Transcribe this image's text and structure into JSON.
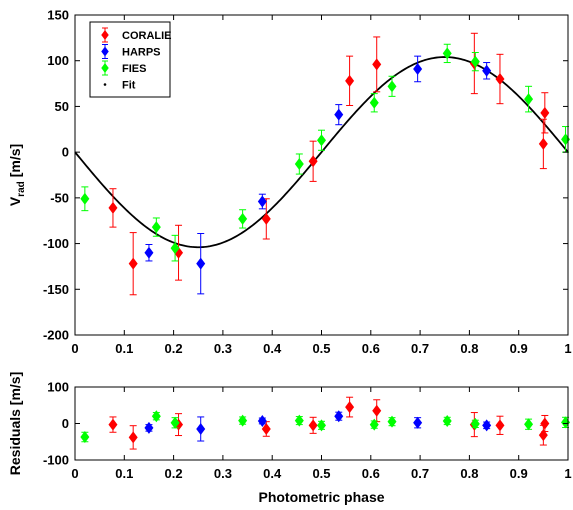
{
  "chart_data": [
    {
      "type": "scatter",
      "panel": "top",
      "title": "",
      "ylabel": "V_rad [m/s]",
      "ylabel_main": "V",
      "ylabel_sub": "rad",
      "ylabel_unit": "[m/s]",
      "xlabel": "",
      "xlim": [
        0,
        1
      ],
      "ylim": [
        -200,
        150
      ],
      "xticks": [
        0,
        0.1,
        0.2,
        0.3,
        0.4,
        0.5,
        0.6,
        0.7,
        0.8,
        0.9,
        1
      ],
      "xtick_labels": [
        "0",
        "0.1",
        "0.2",
        "0.3",
        "0.4",
        "0.5",
        "0.6",
        "0.7",
        "0.8",
        "0.9",
        "1"
      ],
      "yticks": [
        -200,
        -150,
        -100,
        -50,
        0,
        50,
        100,
        150
      ],
      "ytick_labels": [
        "-200",
        "-150",
        "-100",
        "-50",
        "0",
        "50",
        "100",
        "150"
      ],
      "grid": false,
      "legend_position": "top-left",
      "legend": [
        "CORALIE",
        "HARPS",
        "FIES",
        "Fit"
      ],
      "series": [
        {
          "name": "CORALIE",
          "color": "#ff0000",
          "marker": "diamond",
          "points": [
            {
              "x": 0.077,
              "y": -61,
              "err": 21
            },
            {
              "x": 0.118,
              "y": -122,
              "err": 34
            },
            {
              "x": 0.21,
              "y": -110,
              "err": 30
            },
            {
              "x": 0.388,
              "y": -73,
              "err": 22
            },
            {
              "x": 0.483,
              "y": -10,
              "err": 22
            },
            {
              "x": 0.557,
              "y": 78,
              "err": 27
            },
            {
              "x": 0.612,
              "y": 96,
              "err": 30
            },
            {
              "x": 0.81,
              "y": 97,
              "err": 33
            },
            {
              "x": 0.862,
              "y": 80,
              "err": 27
            },
            {
              "x": 0.95,
              "y": 9,
              "err": 27
            },
            {
              "x": 0.953,
              "y": 43,
              "err": 22
            }
          ]
        },
        {
          "name": "HARPS",
          "color": "#0000ff",
          "marker": "diamond",
          "points": [
            {
              "x": 0.15,
              "y": -110,
              "err": 9
            },
            {
              "x": 0.255,
              "y": -122,
              "err": 33
            },
            {
              "x": 0.38,
              "y": -54,
              "err": 8
            },
            {
              "x": 0.535,
              "y": 41,
              "err": 11
            },
            {
              "x": 0.695,
              "y": 91,
              "err": 14
            },
            {
              "x": 0.835,
              "y": 89,
              "err": 9
            }
          ]
        },
        {
          "name": "FIES",
          "color": "#00ff00",
          "marker": "diamond",
          "points": [
            {
              "x": 0.02,
              "y": -51,
              "err": 13
            },
            {
              "x": 0.165,
              "y": -82,
              "err": 10
            },
            {
              "x": 0.203,
              "y": -105,
              "err": 14
            },
            {
              "x": 0.34,
              "y": -73,
              "err": 10
            },
            {
              "x": 0.455,
              "y": -13,
              "err": 11
            },
            {
              "x": 0.5,
              "y": 13,
              "err": 11
            },
            {
              "x": 0.607,
              "y": 54,
              "err": 10
            },
            {
              "x": 0.643,
              "y": 72,
              "err": 11
            },
            {
              "x": 0.755,
              "y": 108,
              "err": 10
            },
            {
              "x": 0.812,
              "y": 99,
              "err": 10
            },
            {
              "x": 0.92,
              "y": 58,
              "err": 14
            },
            {
              "x": 0.995,
              "y": 14,
              "err": 14
            }
          ]
        },
        {
          "name": "Fit",
          "color": "#000000",
          "type": "line",
          "model": "-K*sin(2*pi*phase)",
          "K": 104
        }
      ]
    },
    {
      "type": "scatter",
      "panel": "bottom",
      "title": "",
      "ylabel": "Residuals [m/s]",
      "xlabel": "Photometric phase",
      "xlim": [
        0,
        1
      ],
      "ylim": [
        -100,
        100
      ],
      "xticks": [
        0,
        0.1,
        0.2,
        0.3,
        0.4,
        0.5,
        0.6,
        0.7,
        0.8,
        0.9,
        1
      ],
      "xtick_labels": [
        "0",
        "0.1",
        "0.2",
        "0.3",
        "0.4",
        "0.5",
        "0.6",
        "0.7",
        "0.8",
        "0.9",
        "1"
      ],
      "yticks": [
        -100,
        0,
        100
      ],
      "ytick_labels": [
        "-100",
        "0",
        "100"
      ],
      "grid": false,
      "series": [
        {
          "name": "CORALIE",
          "color": "#ff0000",
          "marker": "diamond",
          "points": [
            {
              "x": 0.077,
              "y": -3,
              "err": 21
            },
            {
              "x": 0.118,
              "y": -38,
              "err": 32
            },
            {
              "x": 0.21,
              "y": -3,
              "err": 30
            },
            {
              "x": 0.388,
              "y": -15,
              "err": 20
            },
            {
              "x": 0.483,
              "y": -5,
              "err": 22
            },
            {
              "x": 0.557,
              "y": 45,
              "err": 27
            },
            {
              "x": 0.612,
              "y": 35,
              "err": 30
            },
            {
              "x": 0.81,
              "y": -3,
              "err": 33
            },
            {
              "x": 0.862,
              "y": -5,
              "err": 25
            },
            {
              "x": 0.95,
              "y": -32,
              "err": 27
            },
            {
              "x": 0.953,
              "y": 0,
              "err": 22
            }
          ]
        },
        {
          "name": "HARPS",
          "color": "#0000ff",
          "marker": "diamond",
          "points": [
            {
              "x": 0.15,
              "y": -12,
              "err": 9
            },
            {
              "x": 0.255,
              "y": -15,
              "err": 33
            },
            {
              "x": 0.38,
              "y": 7,
              "err": 8
            },
            {
              "x": 0.535,
              "y": 20,
              "err": 11
            },
            {
              "x": 0.695,
              "y": 2,
              "err": 14
            },
            {
              "x": 0.835,
              "y": -5,
              "err": 9
            }
          ]
        },
        {
          "name": "FIES",
          "color": "#00ff00",
          "marker": "diamond",
          "points": [
            {
              "x": 0.02,
              "y": -37,
              "err": 13
            },
            {
              "x": 0.165,
              "y": 20,
              "err": 10
            },
            {
              "x": 0.203,
              "y": 2,
              "err": 14
            },
            {
              "x": 0.34,
              "y": 8,
              "err": 10
            },
            {
              "x": 0.455,
              "y": 8,
              "err": 11
            },
            {
              "x": 0.5,
              "y": -5,
              "err": 11
            },
            {
              "x": 0.607,
              "y": -3,
              "err": 10
            },
            {
              "x": 0.643,
              "y": 5,
              "err": 11
            },
            {
              "x": 0.755,
              "y": 7,
              "err": 10
            },
            {
              "x": 0.812,
              "y": -1,
              "err": 10
            },
            {
              "x": 0.92,
              "y": -2,
              "err": 14
            },
            {
              "x": 0.995,
              "y": 3,
              "err": 14
            }
          ]
        }
      ]
    }
  ]
}
